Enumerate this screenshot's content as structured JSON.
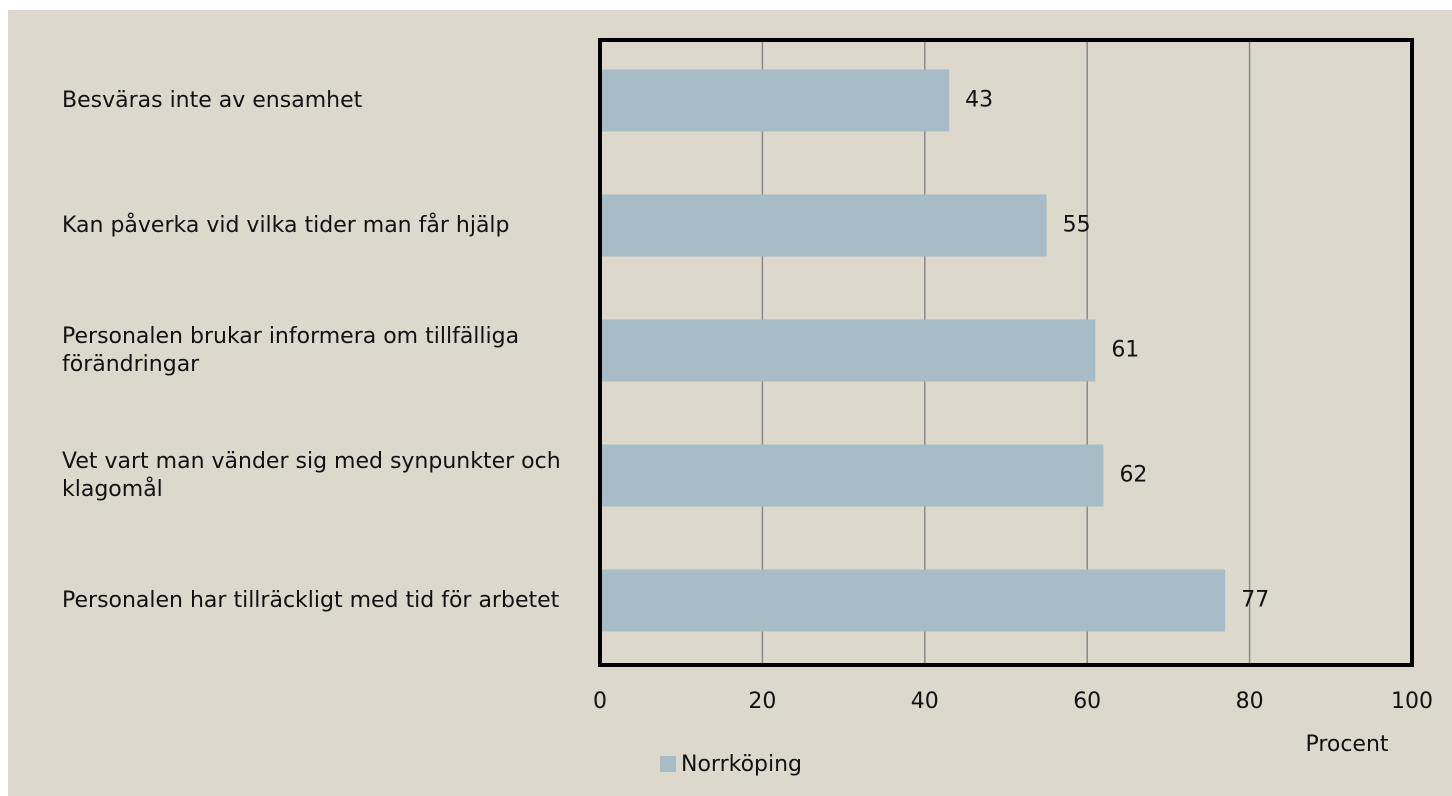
{
  "chart_data": {
    "type": "bar",
    "orientation": "horizontal",
    "categories": [
      "Besväras inte av ensamhet",
      "Kan påverka vid vilka tider man får hjälp",
      "Personalen brukar informera om tillfälliga förändringar",
      "Vet vart man vänder sig med synpunkter och klagomål",
      "Personalen har tillräckligt med tid för arbetet"
    ],
    "series": [
      {
        "name": "Norrköping",
        "color": "#a7bcc6",
        "values": [
          43,
          55,
          61,
          62,
          77
        ]
      }
    ],
    "xlabel": "Procent",
    "xlim": [
      0,
      100
    ],
    "xticks": [
      0,
      20,
      40,
      60,
      80,
      100
    ],
    "grid": true,
    "legend": "bottom"
  }
}
